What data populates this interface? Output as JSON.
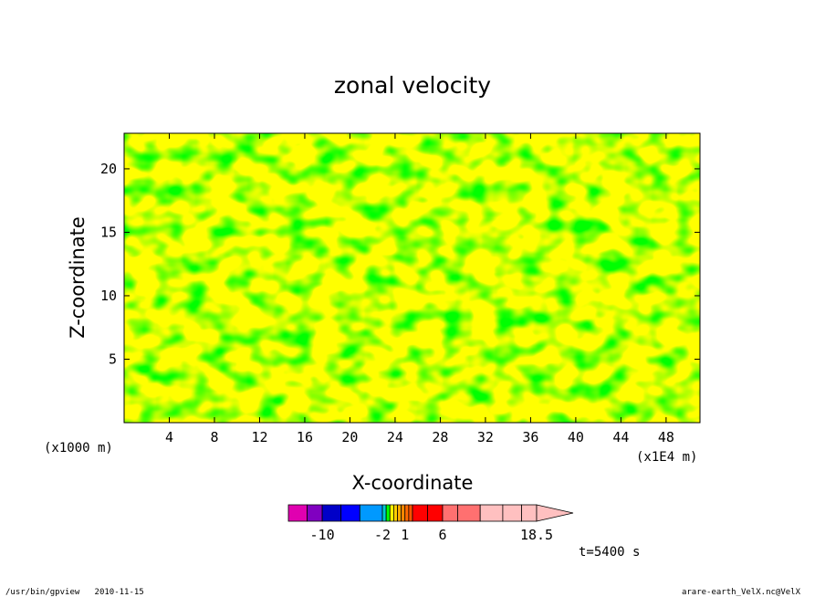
{
  "chart_data": {
    "type": "heatmap",
    "title": "zonal velocity",
    "xlabel": "X-coordinate",
    "ylabel": "Z-coordinate",
    "x_scale_label": "(x1000 m)",
    "x_units_label": "(x1E4 m)",
    "xlim": [
      0,
      51
    ],
    "ylim": [
      0,
      22.8
    ],
    "x_ticks": [
      "4",
      "8",
      "12",
      "16",
      "20",
      "24",
      "28",
      "32",
      "36",
      "40",
      "44",
      "48"
    ],
    "y_ticks": [
      "5",
      "10",
      "15",
      "20"
    ],
    "colorbar": {
      "min": -14.5,
      "max": 18.5,
      "boundaries": [
        -14.5,
        -12,
        -10,
        -7.5,
        -5,
        -2,
        -1.5,
        -1,
        -0.5,
        0,
        0.5,
        1,
        1.5,
        2,
        4,
        6,
        8,
        11,
        14,
        16.5,
        18.5
      ],
      "colors": [
        "#e000b0",
        "#8000c0",
        "#0000c8",
        "#0000ff",
        "#0099ff",
        "#00ccd0",
        "#00ff00",
        "#ffff00",
        "#ffd000",
        "#ffaa00",
        "#ff8800",
        "#ff6a00",
        "#ff5500",
        "#ff0000",
        "#ff0000",
        "#ff7070",
        "#ff7070",
        "#ffc0c0",
        "#ffc0c0",
        "#ffc0c0"
      ],
      "tick_labels": [
        "-10",
        "-2",
        "1",
        "6",
        "18.5"
      ],
      "tick_values": [
        -10,
        -2,
        1,
        6,
        18.5
      ]
    },
    "field_colors": {
      "positive_low": "#00ff00",
      "positive_high": "#ffff00"
    },
    "time_label": "t=5400 s"
  },
  "footer": {
    "left": "/usr/bin/gpview   2010-11-15",
    "right": "arare-earth_VelX.nc@VelX"
  }
}
